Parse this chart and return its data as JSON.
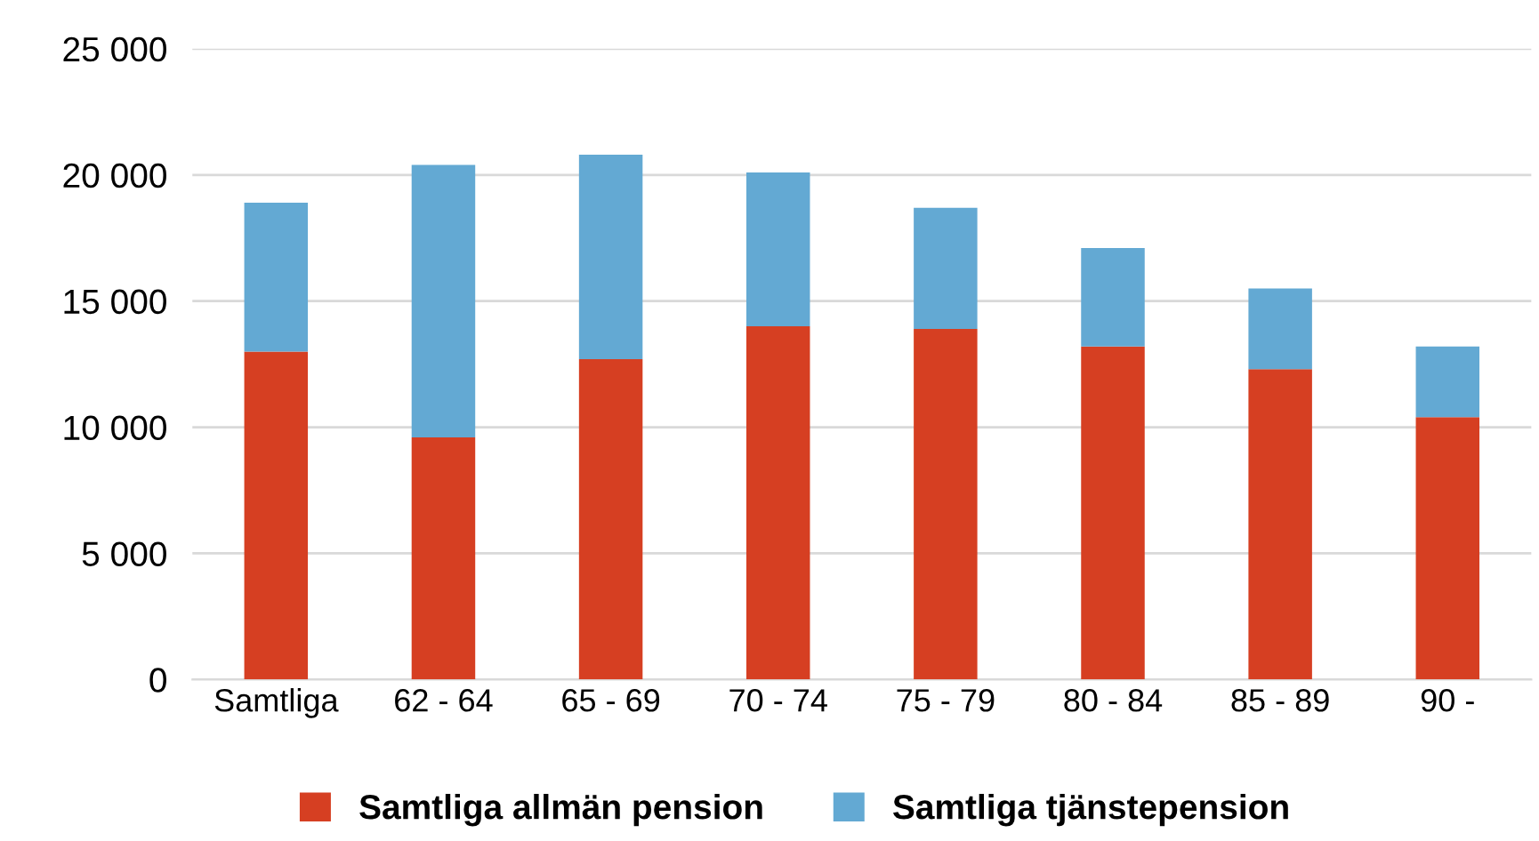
{
  "chart_data": {
    "type": "bar",
    "stacked": true,
    "categories": [
      "Samtliga",
      "62 - 64",
      "65 - 69",
      "70 - 74",
      "75 - 79",
      "80 - 84",
      "85 - 89",
      "90 -"
    ],
    "series": [
      {
        "name": "Samtliga allmän pension",
        "color": "#d63f22",
        "values": [
          13000,
          9600,
          12700,
          14000,
          13900,
          13200,
          12300,
          10400
        ]
      },
      {
        "name": "Samtliga tjänstepension",
        "color": "#63a9d3",
        "values": [
          5900,
          10800,
          8100,
          6100,
          4800,
          3900,
          3200,
          2800
        ]
      }
    ],
    "ylim": [
      0,
      25000
    ],
    "yticks": [
      {
        "value": 0,
        "label": "0"
      },
      {
        "value": 5000,
        "label": "5 000"
      },
      {
        "value": 10000,
        "label": "10 000"
      },
      {
        "value": 15000,
        "label": "15 000"
      },
      {
        "value": 20000,
        "label": "20 000"
      },
      {
        "value": 25000,
        "label": "25 000"
      }
    ],
    "grid": "y",
    "legend": "bottom"
  }
}
